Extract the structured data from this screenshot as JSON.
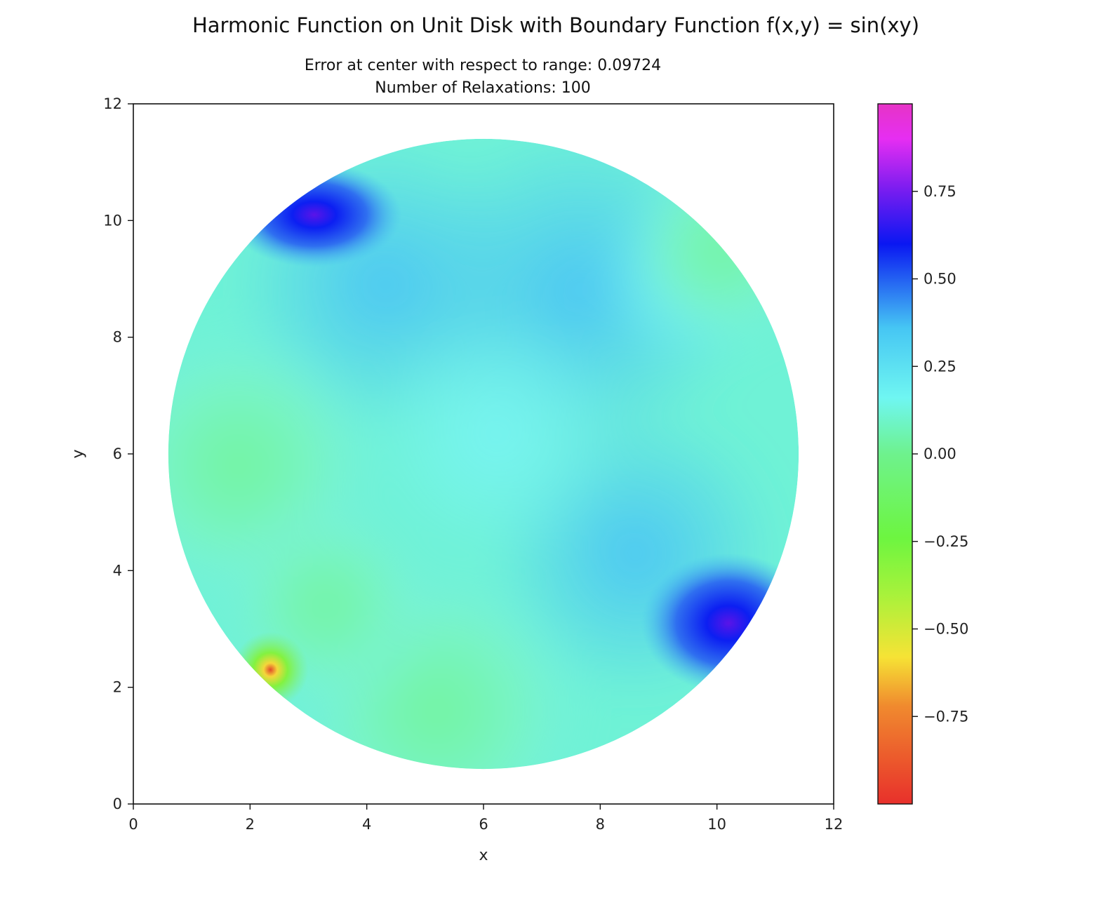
{
  "chart_data": {
    "type": "heatmap",
    "title": "Harmonic Function on Unit Disk with Boundary Function f(x,y) = sin(xy)",
    "subtitle_lines": [
      "Error at center with respect to range: 0.09724",
      "Number of Relaxations: 100"
    ],
    "xlabel": "x",
    "ylabel": "y",
    "xlim": [
      0,
      12
    ],
    "ylim": [
      0,
      12
    ],
    "xticks": [
      0,
      2,
      4,
      6,
      8,
      10,
      12
    ],
    "yticks": [
      0,
      2,
      4,
      6,
      8,
      10,
      12
    ],
    "disk": {
      "center": [
        6,
        6
      ],
      "radius": 5.4
    },
    "colormap": "gist_rainbow",
    "colorbar": {
      "range": [
        -1.0,
        1.0
      ],
      "ticks": [
        0.75,
        0.5,
        0.25,
        0.0,
        -0.25,
        -0.5,
        -0.75
      ],
      "tick_labels": [
        "0.75",
        "0.50",
        "0.25",
        "0.00",
        "−0.25",
        "−0.50",
        "−0.75"
      ],
      "placement": "right"
    },
    "features": [
      {
        "x": 2.2,
        "y": 2.2,
        "value": -0.75
      },
      {
        "x": 3.0,
        "y": 10.2,
        "value": 0.7
      },
      {
        "x": 10.2,
        "y": 3.0,
        "value": 0.65
      },
      {
        "x": 9.0,
        "y": 9.0,
        "value": 0.05
      },
      {
        "x": 6.0,
        "y": 6.0,
        "value": 0.2
      }
    ]
  }
}
